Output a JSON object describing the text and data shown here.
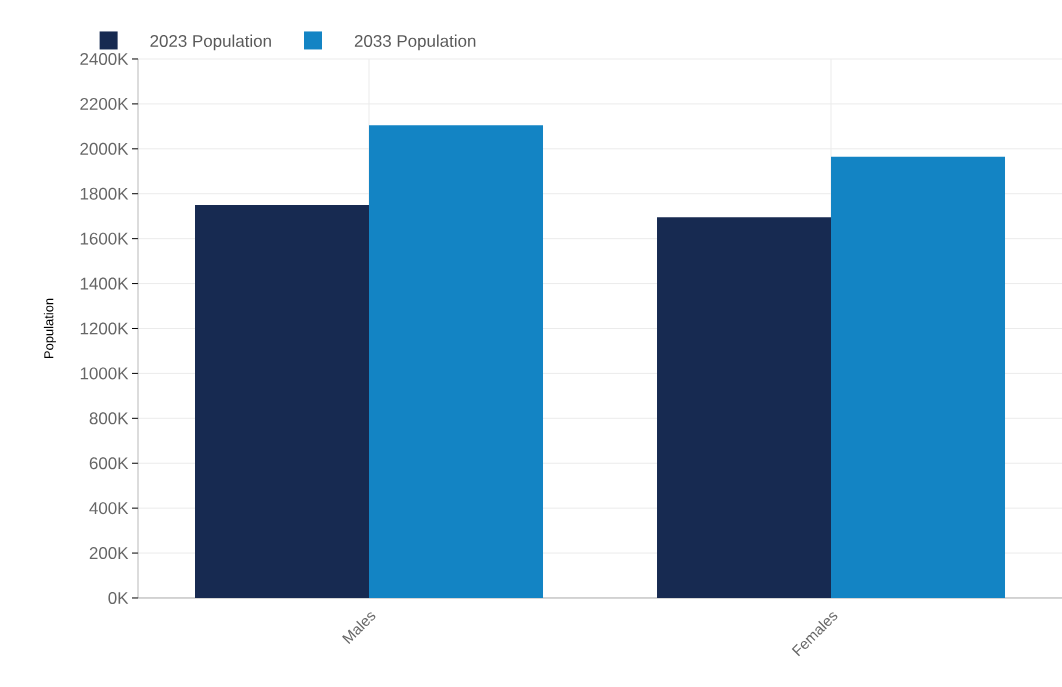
{
  "chart_data": {
    "type": "bar",
    "ylabel": "Population",
    "categories": [
      "Males",
      "Females"
    ],
    "series": [
      {
        "name": "2023 Population",
        "color": "#172a51",
        "values": [
          1750000,
          1695000
        ]
      },
      {
        "name": "2033 Population",
        "color": "#1384c4",
        "values": [
          2105000,
          1965000
        ]
      }
    ],
    "ylim": [
      0,
      2400000
    ],
    "yticks": [
      {
        "value": 0,
        "label": "0K"
      },
      {
        "value": 200000,
        "label": "200K"
      },
      {
        "value": 400000,
        "label": "400K"
      },
      {
        "value": 600000,
        "label": "600K"
      },
      {
        "value": 800000,
        "label": "800K"
      },
      {
        "value": 1000000,
        "label": "1000K"
      },
      {
        "value": 1200000,
        "label": "1200K"
      },
      {
        "value": 1400000,
        "label": "1400K"
      },
      {
        "value": 1600000,
        "label": "1600K"
      },
      {
        "value": 1800000,
        "label": "1800K"
      },
      {
        "value": 2000000,
        "label": "2000K"
      },
      {
        "value": 2200000,
        "label": "2200K"
      },
      {
        "value": 2400000,
        "label": "2400K"
      }
    ],
    "grid": true,
    "legend": "top left"
  }
}
